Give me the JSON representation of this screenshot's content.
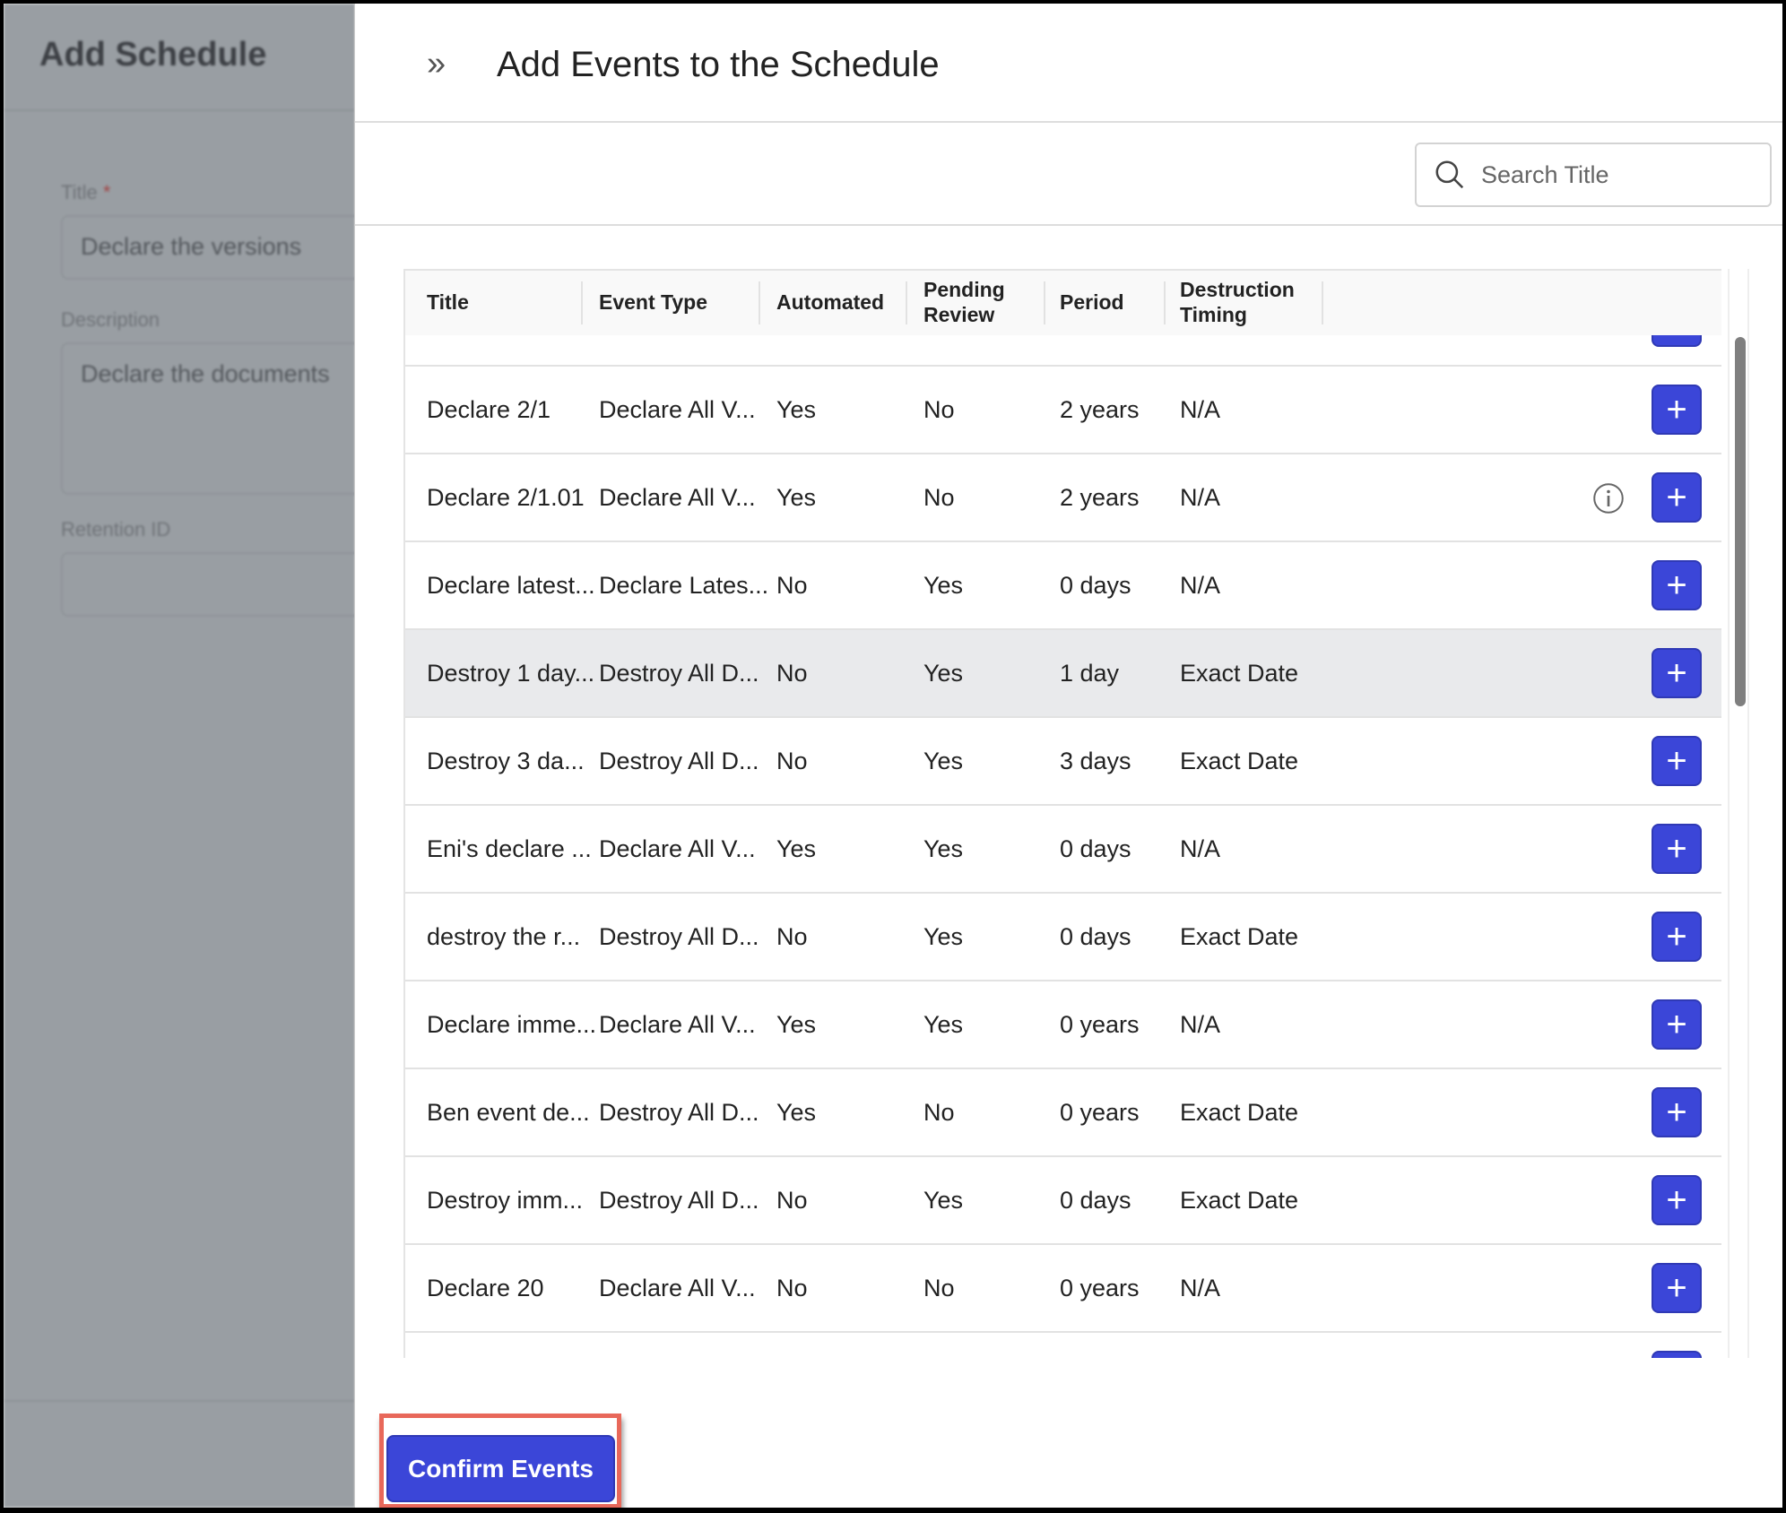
{
  "background_form": {
    "title": "Add Schedule",
    "title_label": "Title",
    "required_mark": "*",
    "title_value": "Declare the versions",
    "description_label": "Description",
    "description_value": "Declare the documents",
    "retention_label": "Retention ID",
    "retention_value": ""
  },
  "panel": {
    "title": "Add Events to the Schedule",
    "collapse_icon": "double-chevron-right",
    "search_placeholder": "Search Title",
    "confirm_label": "Confirm Events"
  },
  "table": {
    "columns": [
      "Title",
      "Event Type",
      "Automated",
      "Pending Review",
      "Period",
      "Destruction Timing"
    ],
    "rows": [
      {
        "title": "Declare 2/1",
        "event_type": "Declare All V...",
        "automated": "Yes",
        "pending_review": "No",
        "period": "2 years",
        "destruction_timing": "N/A",
        "info": false
      },
      {
        "title": "Declare 2/1.01",
        "event_type": "Declare All V...",
        "automated": "Yes",
        "pending_review": "No",
        "period": "2 years",
        "destruction_timing": "N/A",
        "info": true
      },
      {
        "title": "Declare latest...",
        "event_type": "Declare Lates...",
        "automated": "No",
        "pending_review": "Yes",
        "period": "0 days",
        "destruction_timing": "N/A",
        "info": false
      },
      {
        "title": "Destroy 1 day...",
        "event_type": "Destroy All D...",
        "automated": "No",
        "pending_review": "Yes",
        "period": "1 day",
        "destruction_timing": "Exact Date",
        "info": false,
        "highlighted": true
      },
      {
        "title": "Destroy 3 da...",
        "event_type": "Destroy All D...",
        "automated": "No",
        "pending_review": "Yes",
        "period": "3 days",
        "destruction_timing": "Exact Date",
        "info": false
      },
      {
        "title": "Eni's declare ...",
        "event_type": "Declare All V...",
        "automated": "Yes",
        "pending_review": "Yes",
        "period": "0 days",
        "destruction_timing": "N/A",
        "info": false
      },
      {
        "title": "destroy the r...",
        "event_type": "Destroy All D...",
        "automated": "No",
        "pending_review": "Yes",
        "period": "0 days",
        "destruction_timing": "Exact Date",
        "info": false
      },
      {
        "title": "Declare imme...",
        "event_type": "Declare All V...",
        "automated": "Yes",
        "pending_review": "Yes",
        "period": "0 years",
        "destruction_timing": "N/A",
        "info": false
      },
      {
        "title": "Ben event de...",
        "event_type": "Destroy All D...",
        "automated": "Yes",
        "pending_review": "No",
        "period": "0 years",
        "destruction_timing": "Exact Date",
        "info": false
      },
      {
        "title": "Destroy imm...",
        "event_type": "Destroy All D...",
        "automated": "No",
        "pending_review": "Yes",
        "period": "0 days",
        "destruction_timing": "Exact Date",
        "info": false
      },
      {
        "title": "Declare 20",
        "event_type": "Declare All V...",
        "automated": "No",
        "pending_review": "No",
        "period": "0 years",
        "destruction_timing": "N/A",
        "info": false
      }
    ],
    "add_label": "+"
  },
  "colors": {
    "accent": "#3b46d8",
    "highlight_outline": "#e8685a",
    "overlay": "#999ea3"
  }
}
